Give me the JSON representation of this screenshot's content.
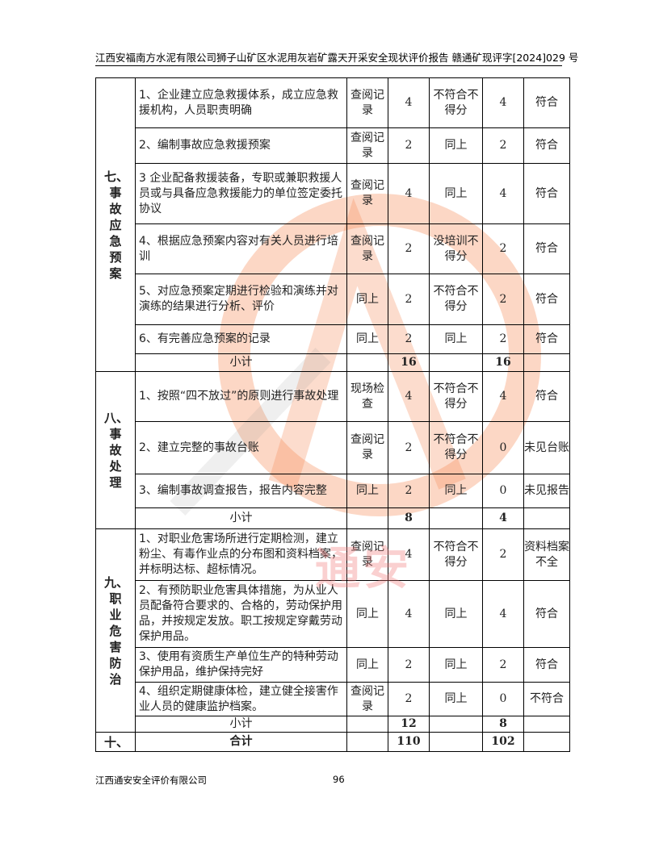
{
  "header": {
    "title": "江西安福南方水泥有限公司狮子山矿区水泥用灰岩矿露天开采安全现状评价报告  赣通矿现评字[2024]029 号"
  },
  "sections": [
    {
      "label": "七、事故应急预案",
      "rows": [
        {
          "item": "1、企业建立应急救援体系，成立应急救援机构，人员职责明确",
          "method": "查阅记录",
          "score": "4",
          "rule": "不符合不得分",
          "actual": "4",
          "result": "符合"
        },
        {
          "item": "2、编制事故应急救援预案",
          "method": "查阅记录",
          "score": "2",
          "rule": "同上",
          "actual": "2",
          "result": "符合"
        },
        {
          "item": "3 企业配备救援装备，专职或兼职救援人员或与具备应急救援能力的单位签定委托协议",
          "method": "查阅记录",
          "score": "4",
          "rule": "同上",
          "actual": "4",
          "result": "符合"
        },
        {
          "item": "4、根据应急预案内容对有关人员进行培训",
          "method": "查阅记录",
          "score": "2",
          "rule": "没培训不得分",
          "actual": "2",
          "result": "符合"
        },
        {
          "item": "5、对应急预案定期进行检验和演练并对演练的结果进行分析、评价",
          "method": "同上",
          "score": "2",
          "rule": "不符合不得分",
          "actual": "2",
          "result": "符合"
        },
        {
          "item": "6、有完善应急预案的记录",
          "method": "同上",
          "score": "2",
          "rule": "同上",
          "actual": "2",
          "result": "符合"
        }
      ],
      "subtotal": {
        "label": "小计",
        "score": "16",
        "actual": "16"
      }
    },
    {
      "label": "八、事故处理",
      "rows": [
        {
          "item": "1、按照“四不放过”的原则进行事故处理",
          "method": "现场检查",
          "score": "4",
          "rule": "不符合不得分",
          "actual": "4",
          "result": "符合"
        },
        {
          "item": "2、建立完整的事故台账",
          "method": "查阅记录",
          "score": "2",
          "rule": "不符合不得分",
          "actual": "0",
          "result": "未见台账"
        },
        {
          "item": "3、编制事故调查报告，报告内容完整",
          "method": "同上",
          "score": "2",
          "rule": "同上",
          "actual": "0",
          "result": "未见报告"
        }
      ],
      "subtotal": {
        "label": "小计",
        "score": "8",
        "actual": "4"
      }
    },
    {
      "label": "九、职业危害防治",
      "rows": [
        {
          "item": "1、对职业危害场所进行定期检测，建立粉尘、有毒作业点的分布图和资料档案，并标明达标、超标情况。",
          "method": "查阅记录",
          "score": "4",
          "rule": "不符合不得分",
          "actual": "2",
          "result": "资料档案不全"
        },
        {
          "item": "2、有预防职业危害具体措施，为从业人员配备符合要求的、合格的，劳动保护用品，并按规定发放。职工按规定穿戴劳动保护用品。",
          "method": "同上",
          "score": "4",
          "rule": "同上",
          "actual": "4",
          "result": "符合"
        },
        {
          "item": "3、使用有资质生产单位生产的特种劳动保护用品，维护保持完好",
          "method": "同上",
          "score": "2",
          "rule": "同上",
          "actual": "2",
          "result": "符合"
        },
        {
          "item": "4、组织定期健康体检，建立健全接害作业人员的健康监护档案。",
          "method": "查阅记录",
          "score": "2",
          "rule": "同上",
          "actual": "0",
          "result": "不符合"
        }
      ],
      "subtotal": {
        "label": "小计",
        "score": "12",
        "actual": "8"
      }
    }
  ],
  "total": {
    "section": "十、",
    "label": "合计",
    "score": "110",
    "actual": "102"
  },
  "footer": {
    "company": "江西通安安全评价有限公司",
    "page": "96"
  },
  "watermark": {
    "text": "江西通安",
    "color": "#f07a3a"
  }
}
